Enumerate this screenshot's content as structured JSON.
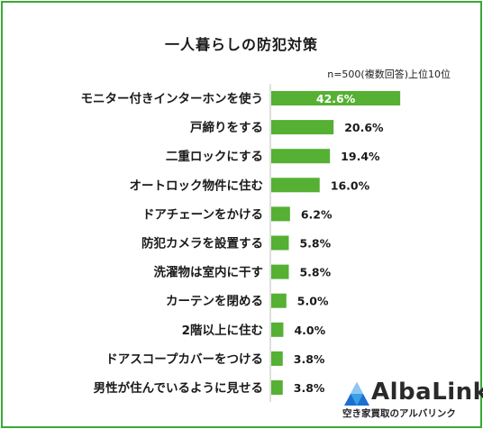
{
  "chart_data": {
    "type": "bar",
    "orientation": "horizontal",
    "title": "一人暮らしの防犯対策",
    "note": "n=500(複数回答)上位10位",
    "unit": "%",
    "bar_color": "#55b033",
    "first_label_color": "#ffffff",
    "grid": false,
    "legend": "none",
    "xlim": [
      0,
      50
    ],
    "categories": [
      "モニター付きインターホンを使う",
      "戸締りをする",
      "二重ロックにする",
      "オートロック物件に住む",
      "ドアチェーンをかける",
      "防犯カメラを設置する",
      "洗濯物は室内に干す",
      "カーテンを閉める",
      "2階以上に住む",
      "ドアスコープカバーをつける",
      "男性が住んでいるように見せる"
    ],
    "values": [
      42.6,
      20.6,
      19.4,
      16.0,
      6.2,
      5.8,
      5.8,
      5.0,
      4.0,
      3.8,
      3.8
    ],
    "value_labels": [
      "42.6%",
      "20.6%",
      "19.4%",
      "16.0%",
      "6.2%",
      "5.8%",
      "5.8%",
      "5.0%",
      "4.0%",
      "3.8%",
      "3.8%"
    ]
  },
  "logo": {
    "name": "AlbaLink",
    "tagline": "空き家買取のアルバリンク",
    "colors": [
      "#1d6fd0",
      "#3aa0e8",
      "#8ec7f0"
    ]
  },
  "frame_color": "#39a935"
}
